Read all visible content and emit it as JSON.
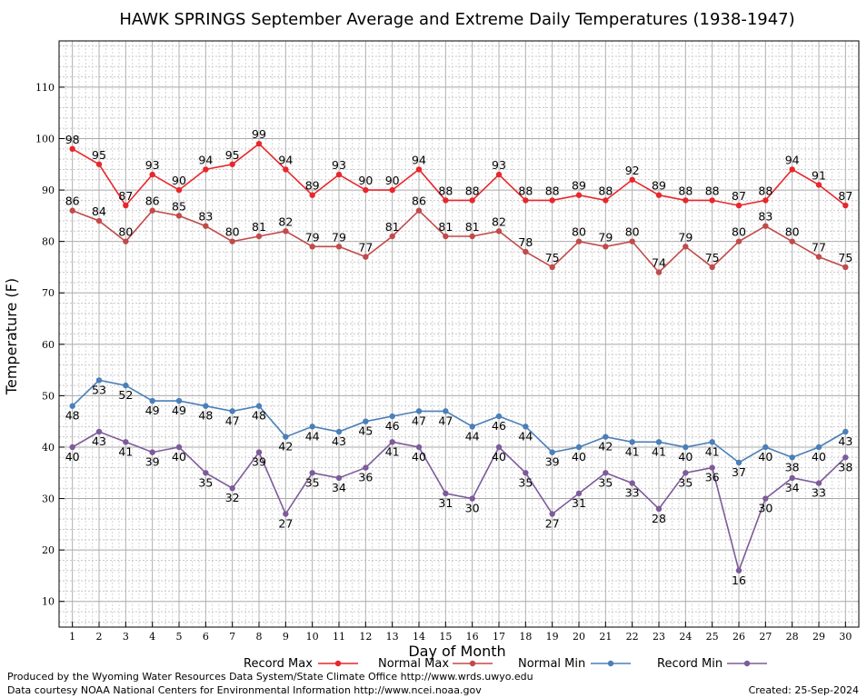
{
  "chart_data": {
    "type": "line",
    "title": "HAWK SPRINGS September Average and Extreme Daily Temperatures (1938-1947)",
    "xlabel": "Day of Month",
    "ylabel": "Temperature (F)",
    "x": [
      1,
      2,
      3,
      4,
      5,
      6,
      7,
      8,
      9,
      10,
      11,
      12,
      13,
      14,
      15,
      16,
      17,
      18,
      19,
      20,
      21,
      22,
      23,
      24,
      25,
      26,
      27,
      28,
      29,
      30
    ],
    "xlim": [
      0.5,
      30.5
    ],
    "ylim": [
      5,
      119
    ],
    "yticks": [
      10,
      20,
      30,
      40,
      50,
      60,
      70,
      80,
      90,
      100,
      110
    ],
    "grid": true,
    "legend_position": "bottom",
    "series": [
      {
        "name": "Record Max",
        "color": "#e8262b",
        "values": [
          98,
          95,
          87,
          93,
          90,
          94,
          95,
          99,
          94,
          89,
          93,
          90,
          90,
          94,
          88,
          88,
          93,
          88,
          88,
          89,
          88,
          92,
          89,
          88,
          88,
          87,
          88,
          94,
          91,
          87
        ]
      },
      {
        "name": "Normal Max",
        "color": "#c14a4a",
        "values": [
          86,
          84,
          80,
          86,
          85,
          83,
          80,
          81,
          82,
          79,
          79,
          77,
          81,
          86,
          81,
          81,
          82,
          78,
          75,
          80,
          79,
          80,
          74,
          79,
          75,
          80,
          83,
          80,
          77,
          75
        ]
      },
      {
        "name": "Normal Min",
        "color": "#4a7fb8",
        "values": [
          48,
          53,
          52,
          49,
          49,
          48,
          47,
          48,
          42,
          44,
          43,
          45,
          46,
          47,
          47,
          44,
          46,
          44,
          39,
          40,
          42,
          41,
          41,
          40,
          41,
          37,
          40,
          38,
          40,
          43
        ]
      },
      {
        "name": "Record Min",
        "color": "#7d5b9a",
        "values": [
          40,
          43,
          41,
          39,
          40,
          35,
          32,
          39,
          27,
          35,
          34,
          36,
          41,
          40,
          31,
          30,
          40,
          35,
          27,
          31,
          35,
          33,
          28,
          35,
          36,
          16,
          30,
          34,
          33,
          38
        ]
      }
    ]
  },
  "footer": {
    "produced": "Produced by the Wyoming Water Resources Data System/State Climate Office http://www.wrds.uwyo.edu",
    "courtesy": "Data courtesy NOAA National Centers for Environmental Information http://www.ncei.noaa.gov",
    "created": "Created:  25-Sep-2024"
  }
}
